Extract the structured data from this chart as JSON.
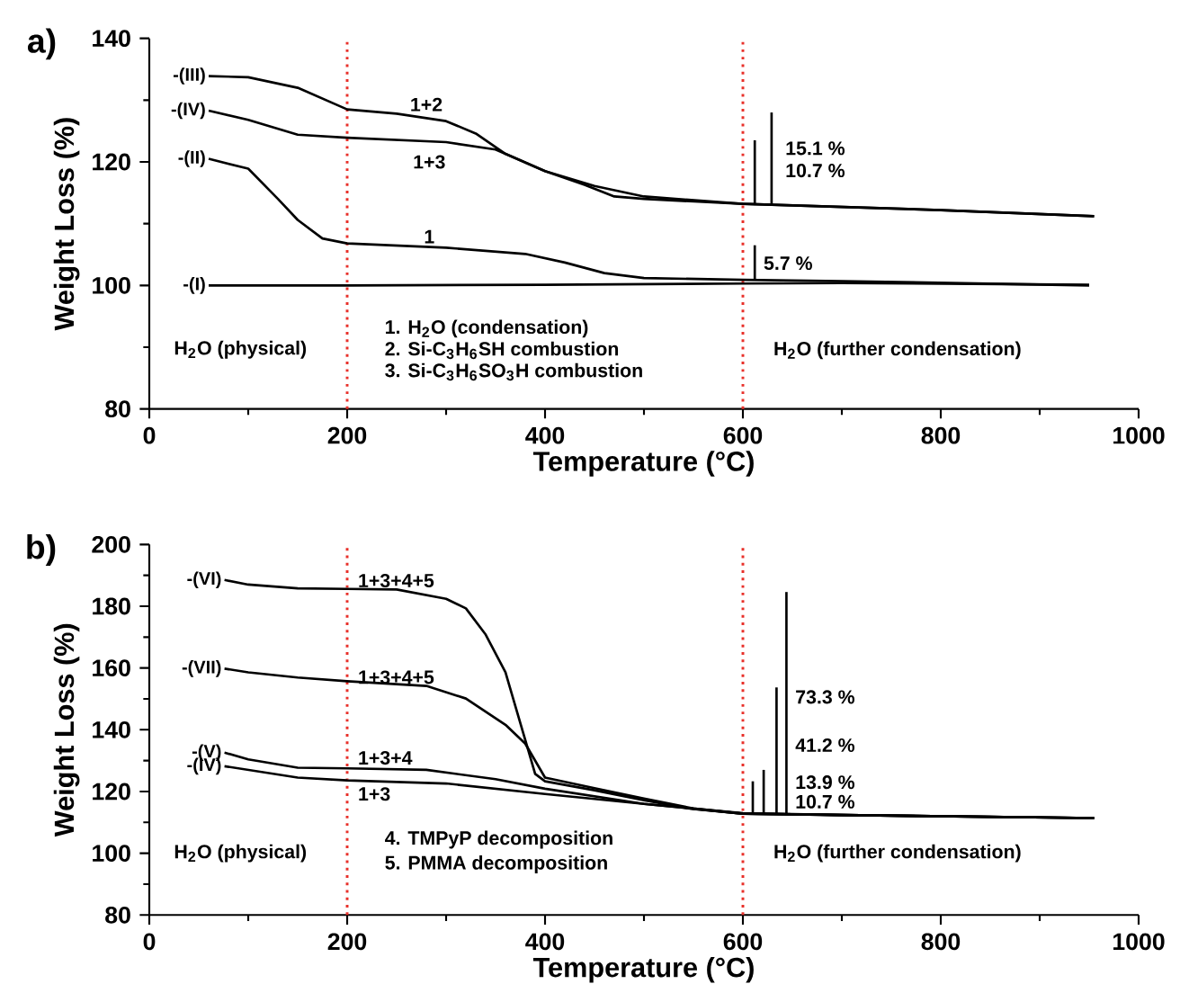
{
  "chart_data": [
    {
      "type": "line",
      "title": "a)",
      "xlabel": "Temperature (°C)",
      "ylabel": "Weight Loss (%)",
      "xlim": [
        0,
        1000
      ],
      "xticks": [
        0,
        200,
        400,
        600,
        800,
        1000
      ],
      "ylim": [
        80,
        140
      ],
      "yticks": [
        80,
        100,
        120,
        140
      ],
      "ref_lines": [
        {
          "axis": "x",
          "value": 200,
          "color": "#e8302a",
          "line_style": "dotted"
        },
        {
          "axis": "x",
          "value": 600,
          "color": "#e8302a",
          "line_style": "dotted"
        }
      ],
      "series": [
        {
          "name": "-(I)",
          "color": "#000000",
          "x": [
            60,
            200,
            400,
            600,
            700,
            950
          ],
          "values": [
            100,
            100,
            100.1,
            100.3,
            100.4,
            100.1
          ]
        },
        {
          "name": "-(II)",
          "color": "#000000",
          "x": [
            60,
            100,
            130,
            150,
            175,
            200,
            300,
            380,
            420,
            460,
            500,
            600,
            700,
            950
          ],
          "values": [
            120.5,
            118.9,
            114,
            110.6,
            107.6,
            106.8,
            106.1,
            105.1,
            103.7,
            102,
            101.2,
            100.9,
            100.7,
            100
          ]
        },
        {
          "name": "-(III)",
          "color": "#000000",
          "x": [
            60,
            100,
            150,
            200,
            250,
            300,
            330,
            360,
            400,
            440,
            470,
            500,
            600,
            800,
            955
          ],
          "values": [
            133.9,
            133.7,
            132,
            128.5,
            127.8,
            126.6,
            124.6,
            121.3,
            118.5,
            116.3,
            114.4,
            114,
            113.2,
            112.2,
            111.2
          ]
        },
        {
          "name": "-(IV)",
          "color": "#000000",
          "x": [
            60,
            100,
            150,
            200,
            300,
            350,
            400,
            450,
            500,
            600,
            800,
            955
          ],
          "values": [
            128.3,
            126.8,
            124.4,
            123.9,
            123.2,
            122,
            118.5,
            116.1,
            114.4,
            113.2,
            112.2,
            111.2
          ]
        },
        {
          "color": "#000000",
          "x": [
            612,
            612
          ],
          "values": [
            113,
            123.5
          ]
        },
        {
          "color": "#000000",
          "x": [
            629,
            629
          ],
          "values": [
            113,
            128
          ]
        },
        {
          "color": "#000000",
          "x": [
            612,
            612
          ],
          "values": [
            101,
            106.5
          ]
        }
      ],
      "annotations": [
        "H$_{2}$O (physical)",
        "1. H$_{2}$O (condensation)",
        "2. Si-C$_{3}$H$_{6}$SH combustion",
        "3. Si-C$_{3}$H$_{6}$SO$_{3}$H combustion",
        "H$_{2}$O (further condensation)",
        "1+2",
        "1+3",
        "1",
        "15.1 %",
        "10.7 %",
        "5.7 %"
      ]
    },
    {
      "type": "line",
      "title": "b)",
      "xlabel": "Temperature (°C)",
      "ylabel": "Weight Loss (%)",
      "xlim": [
        0,
        1000
      ],
      "xticks": [
        0,
        200,
        400,
        600,
        800,
        1000
      ],
      "ylim": [
        80,
        200
      ],
      "yticks": [
        80,
        100,
        120,
        140,
        160,
        180,
        200
      ],
      "ref_lines": [
        {
          "axis": "x",
          "value": 200,
          "color": "#e8302a",
          "line_style": "dotted"
        },
        {
          "axis": "x",
          "value": 600,
          "color": "#e8302a",
          "line_style": "dotted"
        }
      ],
      "series": [
        {
          "name": "-(VI)",
          "color": "#000000",
          "x": [
            76,
            100,
            150,
            200,
            250,
            300,
            320,
            340,
            360,
            380,
            390,
            400,
            450,
            500,
            550,
            600,
            700,
            955
          ],
          "values": [
            188.5,
            187,
            185.8,
            185.6,
            185.4,
            182.4,
            179.3,
            170.8,
            158.6,
            136.7,
            125.7,
            123.3,
            120.4,
            117.2,
            114.3,
            112.8,
            112.4,
            111.4
          ]
        },
        {
          "name": "-(VII)",
          "color": "#000000",
          "x": [
            76,
            100,
            150,
            200,
            280,
            320,
            360,
            380,
            400,
            450,
            500,
            550,
            600,
            700,
            955
          ],
          "values": [
            159.8,
            158.6,
            156.9,
            155.7,
            154.2,
            150.1,
            141.6,
            135.5,
            124.5,
            121.1,
            117.7,
            114.5,
            112.8,
            112.4,
            111.4
          ]
        },
        {
          "name": "-(V)",
          "color": "#000000",
          "x": [
            76,
            100,
            150,
            200,
            280,
            350,
            400,
            500,
            600,
            700,
            955
          ],
          "values": [
            132.6,
            130.4,
            127.7,
            127.5,
            127,
            124,
            120.9,
            116,
            112.8,
            112.4,
            111.4
          ]
        },
        {
          "name": "-(IV)",
          "color": "#000000",
          "x": [
            76,
            150,
            200,
            300,
            400,
            500,
            600,
            700,
            955
          ],
          "values": [
            128.2,
            124.5,
            123.6,
            122.6,
            119.2,
            116,
            113,
            112.4,
            111.4
          ]
        },
        {
          "color": "#000000",
          "x": [
            610,
            610
          ],
          "values": [
            113,
            123.3
          ]
        },
        {
          "color": "#000000",
          "x": [
            621,
            621
          ],
          "values": [
            113,
            127
          ]
        },
        {
          "color": "#000000",
          "x": [
            634,
            634
          ],
          "values": [
            113,
            153.7
          ]
        },
        {
          "color": "#000000",
          "x": [
            644,
            644
          ],
          "values": [
            113,
            184.6
          ]
        }
      ],
      "annotations": [
        "H$_{2}$O (physical)",
        "4. TMPyP decomposition",
        "5. PMMA decomposition",
        "H$_{2}$O (further condensation)",
        "1+3+4+5",
        "1+3+4+5",
        "1+3+4",
        "1+3",
        "73.3 %",
        "41.2 %",
        "13.9 %",
        "10.7 %"
      ]
    }
  ]
}
